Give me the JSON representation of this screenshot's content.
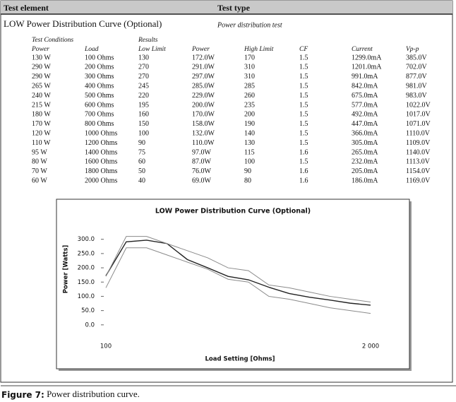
{
  "header": {
    "element": "Test element",
    "type": "Test type"
  },
  "test": {
    "name": "LOW Power Distribution Curve (Optional)",
    "type": "Power distribution test"
  },
  "table": {
    "groups": [
      "Test Conditions",
      "Results"
    ],
    "columns": [
      "Power",
      "Load",
      "Low Limit",
      "Power",
      "High Limit",
      "CF",
      "Current",
      "Vp-p"
    ],
    "rows": [
      [
        "130 W",
        "100 Ohms",
        "130",
        "172.0W",
        "170",
        "1.5",
        "1299.0mA",
        "385.0V"
      ],
      [
        "290 W",
        "200 Ohms",
        "270",
        "291.0W",
        "310",
        "1.5",
        "1201.0mA",
        "702.0V"
      ],
      [
        "290 W",
        "300 Ohms",
        "270",
        "297.0W",
        "310",
        "1.5",
        "991.0mA",
        "877.0V"
      ],
      [
        "265 W",
        "400 Ohms",
        "245",
        "285.0W",
        "285",
        "1.5",
        "842.0mA",
        "981.0V"
      ],
      [
        "240 W",
        "500 Ohms",
        "220",
        "229.0W",
        "260",
        "1.5",
        "675.0mA",
        "983.0V"
      ],
      [
        "215 W",
        "600 Ohms",
        "195",
        "200.0W",
        "235",
        "1.5",
        "577.0mA",
        "1022.0V"
      ],
      [
        "180 W",
        "700 Ohms",
        "160",
        "170.0W",
        "200",
        "1.5",
        "492.0mA",
        "1017.0V"
      ],
      [
        "170 W",
        "800 Ohms",
        "150",
        "158.0W",
        "190",
        "1.5",
        "447.0mA",
        "1071.0V"
      ],
      [
        "120 W",
        "1000 Ohms",
        "100",
        "132.0W",
        "140",
        "1.5",
        "366.0mA",
        "1110.0V"
      ],
      [
        "110 W",
        "1200 Ohms",
        "90",
        "110.0W",
        "130",
        "1.5",
        "305.0mA",
        "1109.0V"
      ],
      [
        "95 W",
        "1400 Ohms",
        "75",
        "97.0W",
        "115",
        "1.6",
        "265.0mA",
        "1140.0V"
      ],
      [
        "80 W",
        "1600 Ohms",
        "60",
        "87.0W",
        "100",
        "1.5",
        "232.0mA",
        "1113.0V"
      ],
      [
        "70 W",
        "1800 Ohms",
        "50",
        "76.0W",
        "90",
        "1.6",
        "205.0mA",
        "1154.0V"
      ],
      [
        "60 W",
        "2000 Ohms",
        "40",
        "69.0W",
        "80",
        "1.6",
        "186.0mA",
        "1169.0V"
      ]
    ]
  },
  "chart_data": {
    "type": "line",
    "title": "LOW Power Distribution Curve (Optional)",
    "xlabel": "Load Setting [Ohms]",
    "ylabel": "Power [Watts]",
    "categories": [
      "100",
      null,
      null,
      null,
      null,
      null,
      null,
      null,
      null,
      null,
      null,
      null,
      null,
      "2 000"
    ],
    "series": [
      {
        "color": "#8a8a8a",
        "values": [
          130,
          270,
          270,
          245,
          220,
          195,
          160,
          150,
          100,
          90,
          75,
          60,
          50,
          40
        ]
      },
      {
        "color": "#222222",
        "values": [
          172,
          291,
          297,
          285,
          229,
          200,
          170,
          158,
          132,
          110,
          97,
          87,
          76,
          69
        ]
      },
      {
        "color": "#8a8a8a",
        "values": [
          170,
          310,
          310,
          285,
          260,
          235,
          200,
          190,
          140,
          130,
          115,
          100,
          90,
          80
        ]
      }
    ],
    "ylim": [
      -50,
      350
    ],
    "yticks": [
      {
        "value": 0,
        "label": "0.0"
      },
      {
        "value": 50,
        "label": "50.0"
      },
      {
        "value": 100,
        "label": "100.0"
      },
      {
        "value": 150,
        "label": "150.0"
      },
      {
        "value": 200,
        "label": "200.0"
      },
      {
        "value": 250,
        "label": "250.0"
      },
      {
        "value": 300,
        "label": "300.0"
      }
    ]
  },
  "caption": {
    "label": "Figure 7:",
    "text": "Power distribution curve."
  }
}
